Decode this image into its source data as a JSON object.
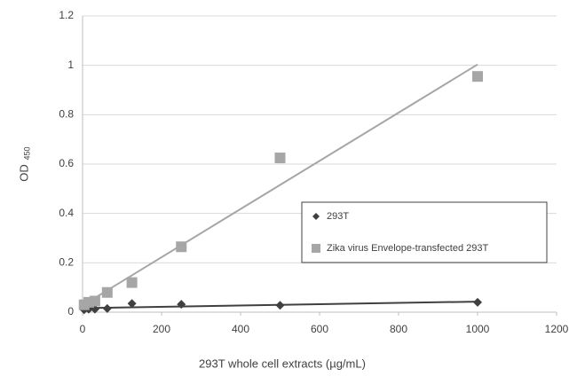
{
  "chart_data": {
    "type": "scatter",
    "x_label": "293T whole cell extracts (µg/mL)",
    "y_label": "OD",
    "y_label_subscript": "450",
    "x": [
      3.9,
      15.6,
      31.25,
      62.5,
      125,
      250,
      500,
      1000
    ],
    "series": [
      {
        "name": "293T",
        "color": "#404040",
        "marker": "diamond",
        "values": [
          0.01,
          0.012,
          0.012,
          0.015,
          0.035,
          0.032,
          0.028,
          0.04
        ]
      },
      {
        "name": "Zika virus Envelope-transfected 293T",
        "color": "#a6a6a6",
        "marker": "square",
        "values": [
          0.03,
          0.04,
          0.045,
          0.08,
          0.12,
          0.265,
          0.625,
          0.955
        ]
      }
    ],
    "trendline": true,
    "xlim": [
      0,
      1200
    ],
    "xticks": [
      0,
      200,
      400,
      600,
      800,
      1000,
      1200
    ],
    "ylim": [
      0,
      1.2
    ],
    "yticks": [
      0,
      0.2,
      0.4,
      0.6,
      0.8,
      1,
      1.2
    ],
    "grid": true
  }
}
